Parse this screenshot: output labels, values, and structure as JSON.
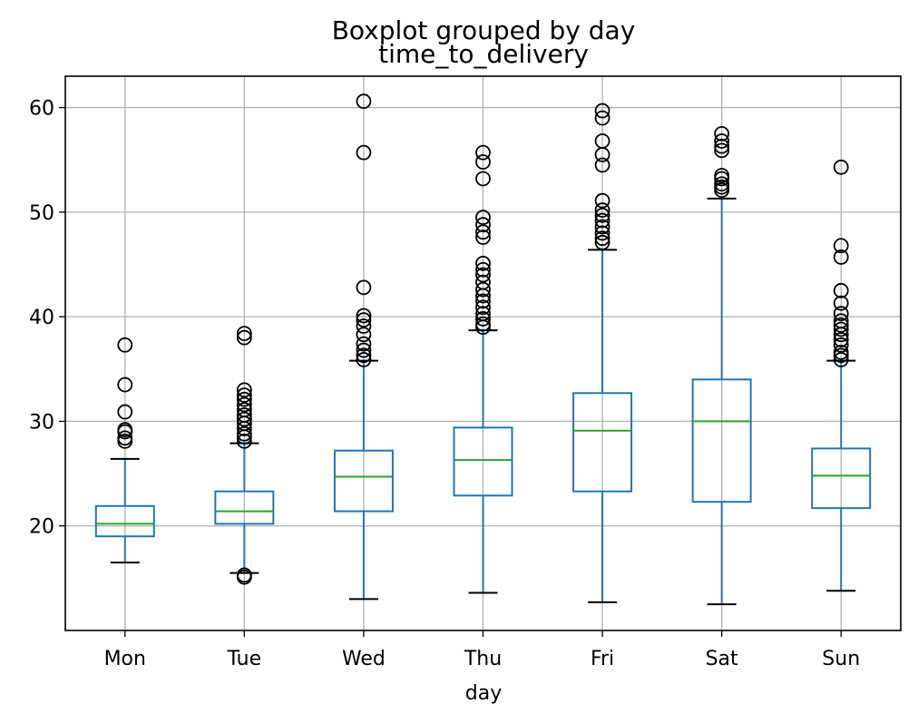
{
  "chart_data": {
    "type": "boxplot",
    "suptitle": "Boxplot grouped by day",
    "title": "time_to_delivery",
    "xlabel": "day",
    "ylabel": "",
    "ylim": [
      10,
      63
    ],
    "yticks": [
      20,
      30,
      40,
      50,
      60
    ],
    "grid": true,
    "colors": {
      "box": "#1f77b4",
      "median": "#2ca02c",
      "whisker": "#1f77b4",
      "cap": "#000000",
      "flier": "#000000",
      "grid": "#b0b0b0"
    },
    "categories": [
      "Mon",
      "Tue",
      "Wed",
      "Thu",
      "Fri",
      "Sat",
      "Sun"
    ],
    "boxes": [
      {
        "name": "Mon",
        "whislo": 16.5,
        "q1": 19.0,
        "median": 20.2,
        "q3": 21.9,
        "whishi": 26.4,
        "fliers": [
          28.1,
          28.4,
          29.0,
          29.2,
          30.9,
          33.5,
          37.3
        ]
      },
      {
        "name": "Tue",
        "whislo": 15.5,
        "q1": 20.2,
        "median": 21.4,
        "q3": 23.3,
        "whishi": 27.9,
        "fliers": [
          15.1,
          15.3,
          28.1,
          28.5,
          28.8,
          29.3,
          29.8,
          30.2,
          30.6,
          31.1,
          31.6,
          32.1,
          32.5,
          33.0,
          38.0,
          38.4
        ]
      },
      {
        "name": "Wed",
        "whislo": 13.0,
        "q1": 21.4,
        "median": 24.7,
        "q3": 27.2,
        "whishi": 35.8,
        "fliers": [
          35.9,
          36.3,
          36.8,
          37.4,
          38.3,
          39.1,
          39.7,
          40.1,
          42.8,
          55.7,
          60.6
        ]
      },
      {
        "name": "Thu",
        "whislo": 13.6,
        "q1": 22.9,
        "median": 26.3,
        "q3": 29.4,
        "whishi": 38.7,
        "fliers": [
          39.0,
          39.3,
          39.8,
          40.3,
          40.9,
          41.5,
          42.0,
          42.6,
          43.3,
          44.0,
          44.5,
          45.1,
          47.6,
          48.1,
          48.8,
          49.5,
          53.2,
          54.8,
          55.7
        ]
      },
      {
        "name": "Fri",
        "whislo": 12.7,
        "q1": 23.3,
        "median": 29.1,
        "q3": 32.7,
        "whishi": 46.4,
        "fliers": [
          47.1,
          47.5,
          48.0,
          48.6,
          49.2,
          49.7,
          50.2,
          51.1,
          54.5,
          55.5,
          56.8,
          59.0,
          59.7
        ]
      },
      {
        "name": "Sat",
        "whislo": 12.5,
        "q1": 22.3,
        "median": 30.0,
        "q3": 34.0,
        "whishi": 51.3,
        "fliers": [
          52.1,
          52.4,
          52.7,
          53.2,
          53.5,
          55.9,
          56.3,
          56.8,
          57.5
        ]
      },
      {
        "name": "Sun",
        "whislo": 13.8,
        "q1": 21.7,
        "median": 24.8,
        "q3": 27.4,
        "whishi": 35.8,
        "fliers": [
          35.9,
          36.3,
          36.6,
          37.3,
          37.8,
          38.3,
          38.8,
          39.2,
          39.6,
          40.3,
          41.3,
          42.5,
          45.7,
          46.8,
          54.3
        ]
      }
    ]
  }
}
